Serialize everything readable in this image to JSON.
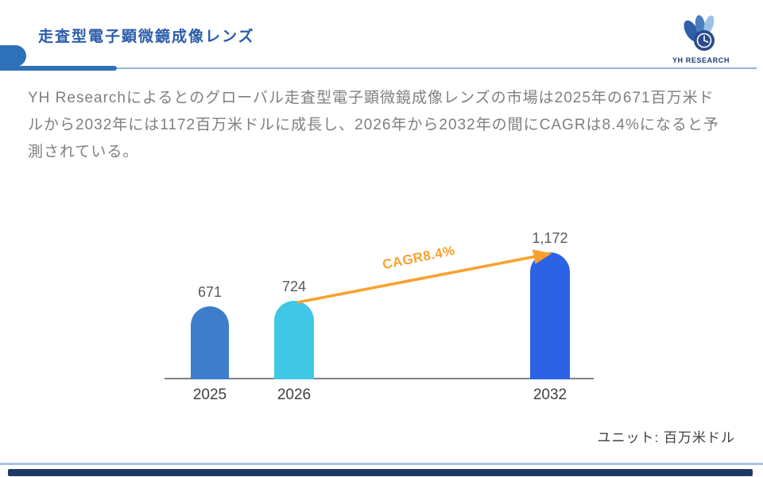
{
  "header": {
    "title": "走査型電子顕微鏡成像レンズ",
    "logo_text": "YH RESEARCH"
  },
  "intro": {
    "paragraph": "YH Researchによるとのグローバル走査型電子顕微鏡成像レンズの市場は2025年の671百万米ドルから2032年には1172百万米ドルに成長し、2026年から2032年の間にCAGRは8.4%になると予測されている。"
  },
  "chart_data": {
    "type": "bar",
    "title": "",
    "xlabel": "",
    "ylabel": "",
    "categories": [
      "2025",
      "2026",
      "2032"
    ],
    "values": [
      671,
      724,
      1172
    ],
    "value_labels": [
      "671",
      "724",
      "1,172"
    ],
    "series_colors": [
      "#3D7DCA",
      "#41C7E6",
      "#2C63E4"
    ],
    "annotation": "CAGR8.4%",
    "annotation_color": "#F9A12E",
    "unit_label": "ユニット: 百万米ドル",
    "ylim": [
      0,
      1250
    ],
    "grid": false,
    "legend": false
  },
  "colors": {
    "title_text": "#2A5CAA",
    "header_accent": "#2E71B8",
    "header_line": "#8FB4DC",
    "logo_text": "#1E3C78",
    "paragraph_text": "#7F7F7F",
    "axis_line": "#808080",
    "value_label": "#595959",
    "category_label": "#404040",
    "footer_line": "#A8C4E4",
    "footer_bar": "#1F3864"
  }
}
